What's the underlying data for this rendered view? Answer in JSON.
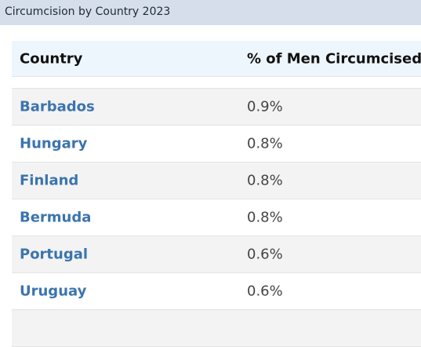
{
  "header": {
    "title": "Circumcision by Country 2023"
  },
  "table": {
    "columns": [
      "Country",
      "% of Men Circumcised"
    ],
    "rows": [
      [
        "Barbados",
        "0.9%"
      ],
      [
        "Hungary",
        "0.8%"
      ],
      [
        "Finland",
        "0.8%"
      ],
      [
        "Bermuda",
        "0.8%"
      ],
      [
        "Portugal",
        "0.6%"
      ],
      [
        "Uruguay",
        "0.6%"
      ]
    ]
  }
}
